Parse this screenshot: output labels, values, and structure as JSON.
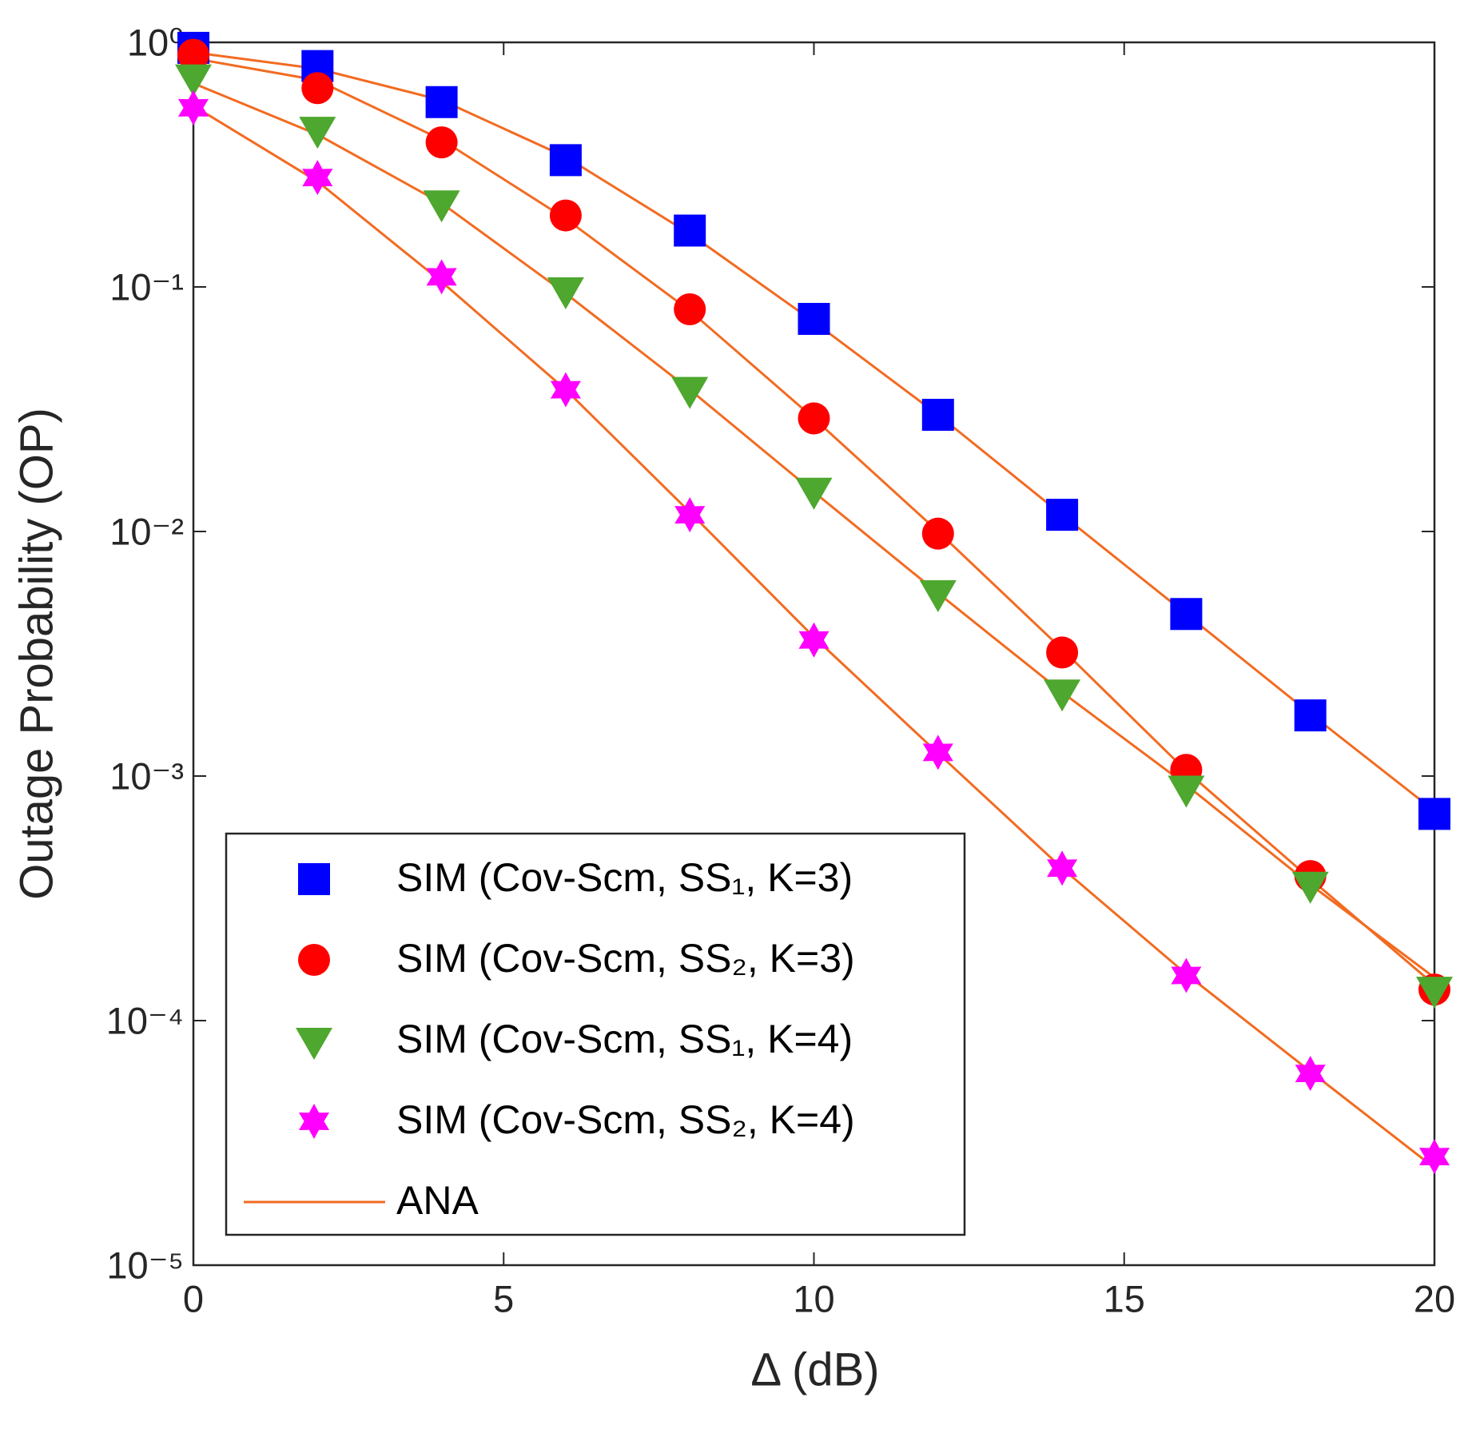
{
  "chart_data": {
    "type": "line",
    "xlabel": "Δ (dB)",
    "ylabel": "Outage Probability (OP)",
    "x": [
      0,
      2,
      4,
      6,
      8,
      10,
      12,
      14,
      16,
      18,
      20
    ],
    "xlim": [
      0,
      20
    ],
    "xticks": [
      0,
      5,
      10,
      15,
      20
    ],
    "ylim": [
      1e-05,
      1
    ],
    "yscale": "log",
    "yticks": [
      {
        "value": 1e-05,
        "label": "10⁻⁵"
      },
      {
        "value": 0.0001,
        "label": "10⁻⁴"
      },
      {
        "value": 0.001,
        "label": "10⁻³"
      },
      {
        "value": 0.01,
        "label": "10⁻²"
      },
      {
        "value": 0.1,
        "label": "10⁻¹"
      },
      {
        "value": 1,
        "label": "10⁰"
      }
    ],
    "legend": "lower left",
    "series": [
      {
        "name": "SIM (Cov-Scm, SS₁, K=3)",
        "style": "marker",
        "marker": "square",
        "color": "#0000ff",
        "values": [
          0.95,
          0.8,
          0.57,
          0.33,
          0.17,
          0.074,
          0.03,
          0.0117,
          0.0046,
          0.00177,
          0.0007
        ]
      },
      {
        "name": "SIM (Cov-Scm, SS₂, K=3)",
        "style": "marker",
        "marker": "circle",
        "color": "#ff0000",
        "values": [
          0.89,
          0.65,
          0.39,
          0.196,
          0.081,
          0.029,
          0.0098,
          0.0032,
          0.00106,
          0.00039,
          0.000134
        ]
      },
      {
        "name": "SIM (Cov-Scm, SS₁, K=4)",
        "style": "marker",
        "marker": "triangle-down",
        "color": "#4ea72e",
        "values": [
          0.72,
          0.44,
          0.22,
          0.097,
          0.038,
          0.0147,
          0.0056,
          0.0022,
          0.00089,
          0.00036,
          0.000134
        ]
      },
      {
        "name": "SIM (Cov-Scm, SS₂, K=4)",
        "style": "marker",
        "marker": "hexagram",
        "color": "#ff00ff",
        "values": [
          0.54,
          0.28,
          0.11,
          0.038,
          0.0117,
          0.0036,
          0.00125,
          0.00042,
          0.000153,
          6.08e-05,
          2.78e-05
        ]
      },
      {
        "name": "ANA",
        "style": "line",
        "color": "#f26b21",
        "values": [
          0.91,
          0.78,
          0.58,
          0.34,
          0.165,
          0.072,
          0.03,
          0.0117,
          0.0046,
          0.0018,
          0.00072
        ]
      },
      {
        "style": "line",
        "color": "#f26b21",
        "values": [
          0.86,
          0.7,
          0.4,
          0.19,
          0.08,
          0.029,
          0.01,
          0.0033,
          0.00105,
          0.00038,
          0.00014
        ]
      },
      {
        "style": "line",
        "color": "#f26b21",
        "values": [
          0.68,
          0.42,
          0.22,
          0.094,
          0.038,
          0.0145,
          0.0056,
          0.0022,
          0.00092,
          0.00036,
          0.00015
        ]
      },
      {
        "style": "line",
        "color": "#f26b21",
        "values": [
          0.55,
          0.27,
          0.105,
          0.038,
          0.012,
          0.0037,
          0.00124,
          0.00042,
          0.000155,
          6.2e-05,
          2.5e-05
        ]
      }
    ]
  }
}
